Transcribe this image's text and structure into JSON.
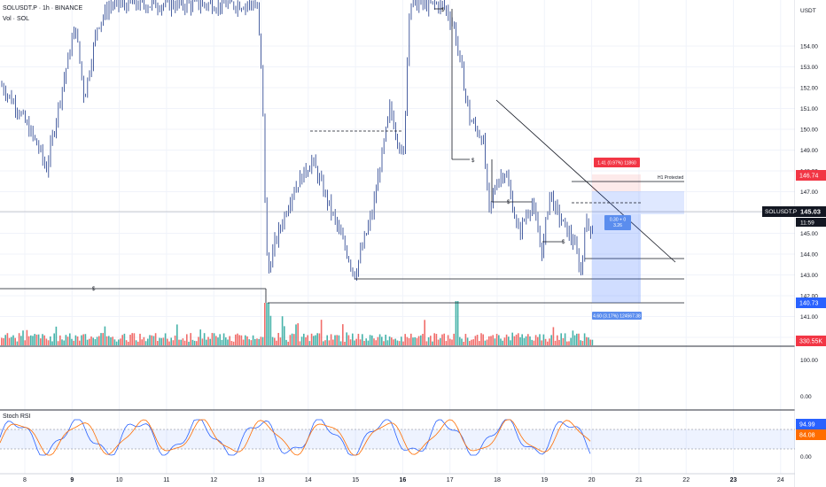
{
  "symbol": {
    "title": "SOLUSDT.P · 1h · BINANCE",
    "volume_label": "Vol · SOL",
    "ticker_tag": "SOLUSDT.P",
    "last_price": "145.03",
    "countdown": "11:59"
  },
  "price_axis": {
    "unit": "USDT",
    "ticks": [
      "154.00",
      "153.00",
      "152.00",
      "151.00",
      "150.00",
      "149.00",
      "148.00",
      "147.00",
      "146.00",
      "145.00",
      "144.00",
      "143.00",
      "142.00",
      "141.00",
      "140.00"
    ],
    "tag_top": "146.74",
    "tag_bottom": "140.73",
    "tag_volume": "330.55K"
  },
  "middle_pane": {
    "ticks": [
      "100.00",
      "0.00"
    ]
  },
  "stoch": {
    "title": "Stoch RSI",
    "ticks": [
      "50.00",
      "0.00"
    ],
    "value_k": "94.99",
    "value_d": "84.08"
  },
  "time_axis": {
    "labels": [
      "8",
      "9",
      "10",
      "11",
      "12",
      "13",
      "14",
      "15",
      "16",
      "17",
      "18",
      "19",
      "20",
      "21",
      "22",
      "23",
      "24"
    ],
    "bold": [
      "9",
      "16",
      "23"
    ]
  },
  "position_tool": {
    "profit_label": "1.41 (0.97%) 11860",
    "ratio_label": "0.30 + 0",
    "ratio_sub": "3.26",
    "loss_label": "4.60 (3.17%) 124567.38"
  },
  "annotations": {
    "h1_protected": "H1 Protected",
    "sweep_marker": "$"
  },
  "colors": {
    "up": "#26a69a",
    "down": "#ef5350",
    "wick": "#1e3a8a",
    "tag_red": "#f23645",
    "tag_blue": "#2962ff",
    "stoch_k": "#2962ff",
    "stoch_d": "#ff6d00"
  }
}
